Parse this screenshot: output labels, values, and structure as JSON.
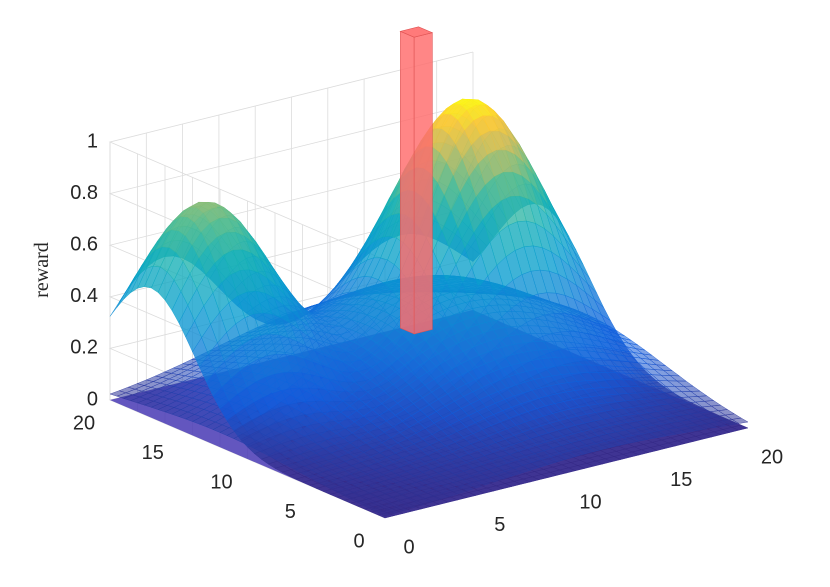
{
  "chart_data": {
    "type": "surface3d",
    "title": "",
    "zlabel": "reward",
    "xlim": [
      0,
      20
    ],
    "ylim": [
      0,
      20
    ],
    "zlim": [
      0,
      1
    ],
    "x_ticks": [
      0,
      5,
      10,
      15,
      20
    ],
    "y_ticks": [
      0,
      5,
      10,
      15,
      20
    ],
    "z_ticks": [
      0,
      0.2,
      0.4,
      0.6,
      0.8,
      1
    ],
    "x_tick_labels": [
      "0",
      "5",
      "10",
      "15",
      "20"
    ],
    "y_tick_labels": [
      "0",
      "5",
      "10",
      "15",
      "20"
    ],
    "z_tick_labels": [
      "0",
      "0.2",
      "0.4",
      "0.6",
      "0.8",
      "1"
    ],
    "grid": true,
    "colormap": "parula",
    "surfaces": [
      {
        "kind": "gaussian-peaks",
        "peaks": [
          {
            "x": 3,
            "y": 17,
            "height": 0.78,
            "spread": 3.2
          },
          {
            "x": 16,
            "y": 15,
            "height": 1.0,
            "spread": 3.5
          }
        ]
      },
      {
        "kind": "gaussian-peaks",
        "peaks": [
          {
            "x": 12,
            "y": 12,
            "height": 0.42,
            "spread": 6.0
          }
        ]
      }
    ],
    "highlight_bar": {
      "x": [
        16,
        17
      ],
      "y": [
        19,
        20
      ],
      "height": 1.15,
      "color": "#ff6b6b"
    }
  }
}
